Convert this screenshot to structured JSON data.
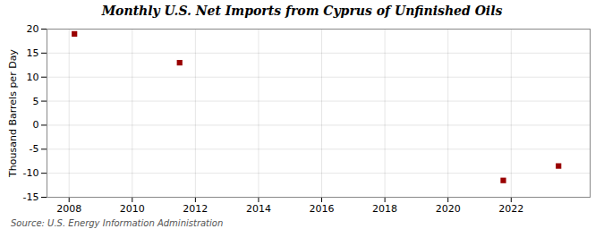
{
  "chart_data": {
    "type": "scatter",
    "title": "Monthly U.S. Net Imports from Cyprus of Unfinished Oils",
    "ylabel": "Thousand Barrels per Day",
    "caption": "Source: U.S. Energy Information Administration",
    "x": [
      2008.17,
      2011.5,
      2021.75,
      2023.5
    ],
    "values": [
      19.0,
      13.0,
      -11.5,
      -8.5
    ],
    "color": "#990000",
    "marker": "square",
    "xlim": [
      2007.3,
      2024.5
    ],
    "ylim": [
      -15,
      20
    ],
    "xticks": [
      2008,
      2010,
      2012,
      2014,
      2016,
      2018,
      2020,
      2022
    ],
    "yticks": [
      -15,
      -10,
      -5,
      0,
      5,
      10,
      15,
      20
    ],
    "grid": true
  }
}
